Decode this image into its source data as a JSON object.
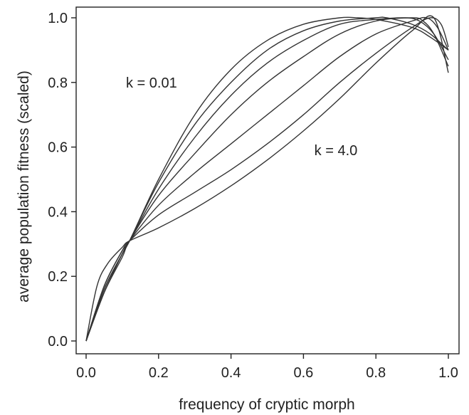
{
  "chart_data": {
    "type": "line",
    "title": "",
    "xlabel": "frequency of cryptic morph",
    "ylabel": "average population fitness (scaled)",
    "xlim": [
      0,
      1
    ],
    "ylim": [
      0,
      1
    ],
    "x_ticks": [
      "0.0",
      "0.2",
      "0.4",
      "0.6",
      "0.8",
      "1.0"
    ],
    "y_ticks": [
      "0.0",
      "0.2",
      "0.4",
      "0.6",
      "0.8",
      "1.0"
    ],
    "grid": false,
    "annotations": [
      {
        "text": "k = 0.01",
        "x": 0.11,
        "y": 0.8
      },
      {
        "text": "k = 4.0",
        "x": 0.63,
        "y": 0.59
      }
    ],
    "series": [
      {
        "x": [
          0,
          0.05,
          0.1,
          0.12,
          0.2,
          0.3,
          0.4,
          0.5,
          0.6,
          0.7,
          0.75,
          0.8,
          0.9,
          0.95,
          1.0
        ],
        "values": [
          0,
          0.17,
          0.28,
          0.31,
          0.5,
          0.7,
          0.84,
          0.93,
          0.98,
          1.0,
          1.0,
          0.995,
          0.97,
          0.94,
          0.9
        ]
      },
      {
        "x": [
          0,
          0.05,
          0.1,
          0.12,
          0.2,
          0.3,
          0.4,
          0.5,
          0.6,
          0.7,
          0.8,
          0.83,
          0.9,
          0.95,
          1.0
        ],
        "values": [
          0,
          0.16,
          0.27,
          0.31,
          0.49,
          0.67,
          0.8,
          0.9,
          0.96,
          0.99,
          1.0,
          1.0,
          0.98,
          0.95,
          0.9
        ]
      },
      {
        "x": [
          0,
          0.05,
          0.1,
          0.12,
          0.2,
          0.3,
          0.4,
          0.5,
          0.6,
          0.7,
          0.8,
          0.88,
          0.92,
          0.96,
          1.0
        ],
        "values": [
          0,
          0.15,
          0.27,
          0.31,
          0.47,
          0.63,
          0.76,
          0.86,
          0.93,
          0.98,
          0.995,
          1.0,
          0.99,
          0.95,
          0.87
        ]
      },
      {
        "x": [
          0,
          0.05,
          0.1,
          0.12,
          0.2,
          0.3,
          0.4,
          0.5,
          0.6,
          0.7,
          0.8,
          0.9,
          0.93,
          0.96,
          1.0
        ],
        "values": [
          0,
          0.15,
          0.26,
          0.31,
          0.45,
          0.58,
          0.7,
          0.8,
          0.88,
          0.95,
          0.99,
          1.0,
          0.99,
          0.95,
          0.85
        ]
      },
      {
        "x": [
          0,
          0.05,
          0.1,
          0.12,
          0.2,
          0.3,
          0.4,
          0.5,
          0.6,
          0.7,
          0.8,
          0.9,
          0.94,
          0.97,
          1.0
        ],
        "values": [
          0,
          0.16,
          0.27,
          0.31,
          0.42,
          0.52,
          0.61,
          0.7,
          0.79,
          0.88,
          0.95,
          0.99,
          1.0,
          0.97,
          0.9
        ]
      },
      {
        "x": [
          0,
          0.05,
          0.1,
          0.12,
          0.2,
          0.3,
          0.4,
          0.5,
          0.6,
          0.7,
          0.8,
          0.9,
          0.95,
          0.98,
          1.0
        ],
        "values": [
          0,
          0.17,
          0.28,
          0.31,
          0.39,
          0.46,
          0.53,
          0.61,
          0.7,
          0.8,
          0.89,
          0.97,
          1.0,
          0.98,
          0.91
        ]
      },
      {
        "x": [
          0,
          0.03,
          0.06,
          0.1,
          0.12,
          0.2,
          0.3,
          0.4,
          0.5,
          0.6,
          0.7,
          0.8,
          0.9,
          0.96,
          1.0
        ],
        "values": [
          0,
          0.17,
          0.24,
          0.29,
          0.31,
          0.35,
          0.41,
          0.48,
          0.56,
          0.65,
          0.75,
          0.86,
          0.96,
          1.0,
          0.83
        ]
      }
    ]
  }
}
